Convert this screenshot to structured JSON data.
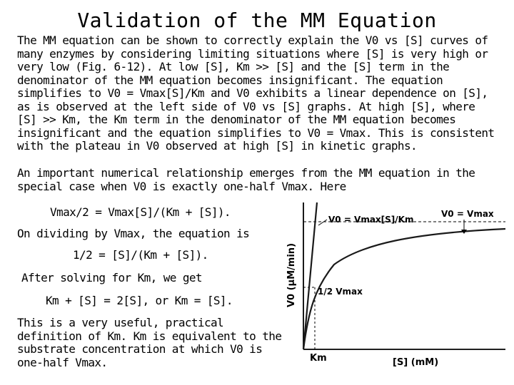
{
  "slide": {
    "title": "Validation of the MM Equation",
    "paragraph1": "The MM equation can be shown to correctly explain the V0 vs [S] curves of many enzymes by considering limiting situations where [S] is very high or very low (Fig. 6-12). At low [S], Km >> [S] and the [S] term in the denominator of the MM equation becomes insignificant. The equation simplifies to V0 = Vmax[S]/Km and V0 exhibits a linear dependence on [S], as is observed at the left side of V0 vs [S] graphs. At high [S], where [S] >> Km, the Km term in the denominator of the MM equation becomes insignificant and the equation simplifies to V0 = Vmax. This is consistent with the plateau in V0 observed at high [S] in kinetic graphs.",
    "paragraph2": "An important numerical relationship emerges from the MM equation in the special case when V0 is exactly one-half Vmax. Here",
    "equation1": "Vmax/2 = Vmax[S]/(Km + [S]).",
    "dividing_text": "On dividing by Vmax, the equation is",
    "equation2": "1/2 = [S]/(Km + [S]).",
    "solving_text": "After solving for Km, we get",
    "equation3": "Km + [S] = 2[S], or Km = [S].",
    "paragraph3": "This is a very useful, practical definition of Km. Km is equivalent to the substrate concentration at which V0 is one-half Vmax."
  },
  "graph": {
    "y_axis_label": "V0 (μM/min)",
    "x_axis_label": "[S] (mM)",
    "linear_label": "V0 = Vmax[S]/Km",
    "plateau_label": "V0 = Vmax",
    "half_vmax_label": "1/2 Vmax",
    "km_label": "Km",
    "colors": {
      "curve": "#1a1a1a",
      "background": "#ffffff"
    }
  }
}
